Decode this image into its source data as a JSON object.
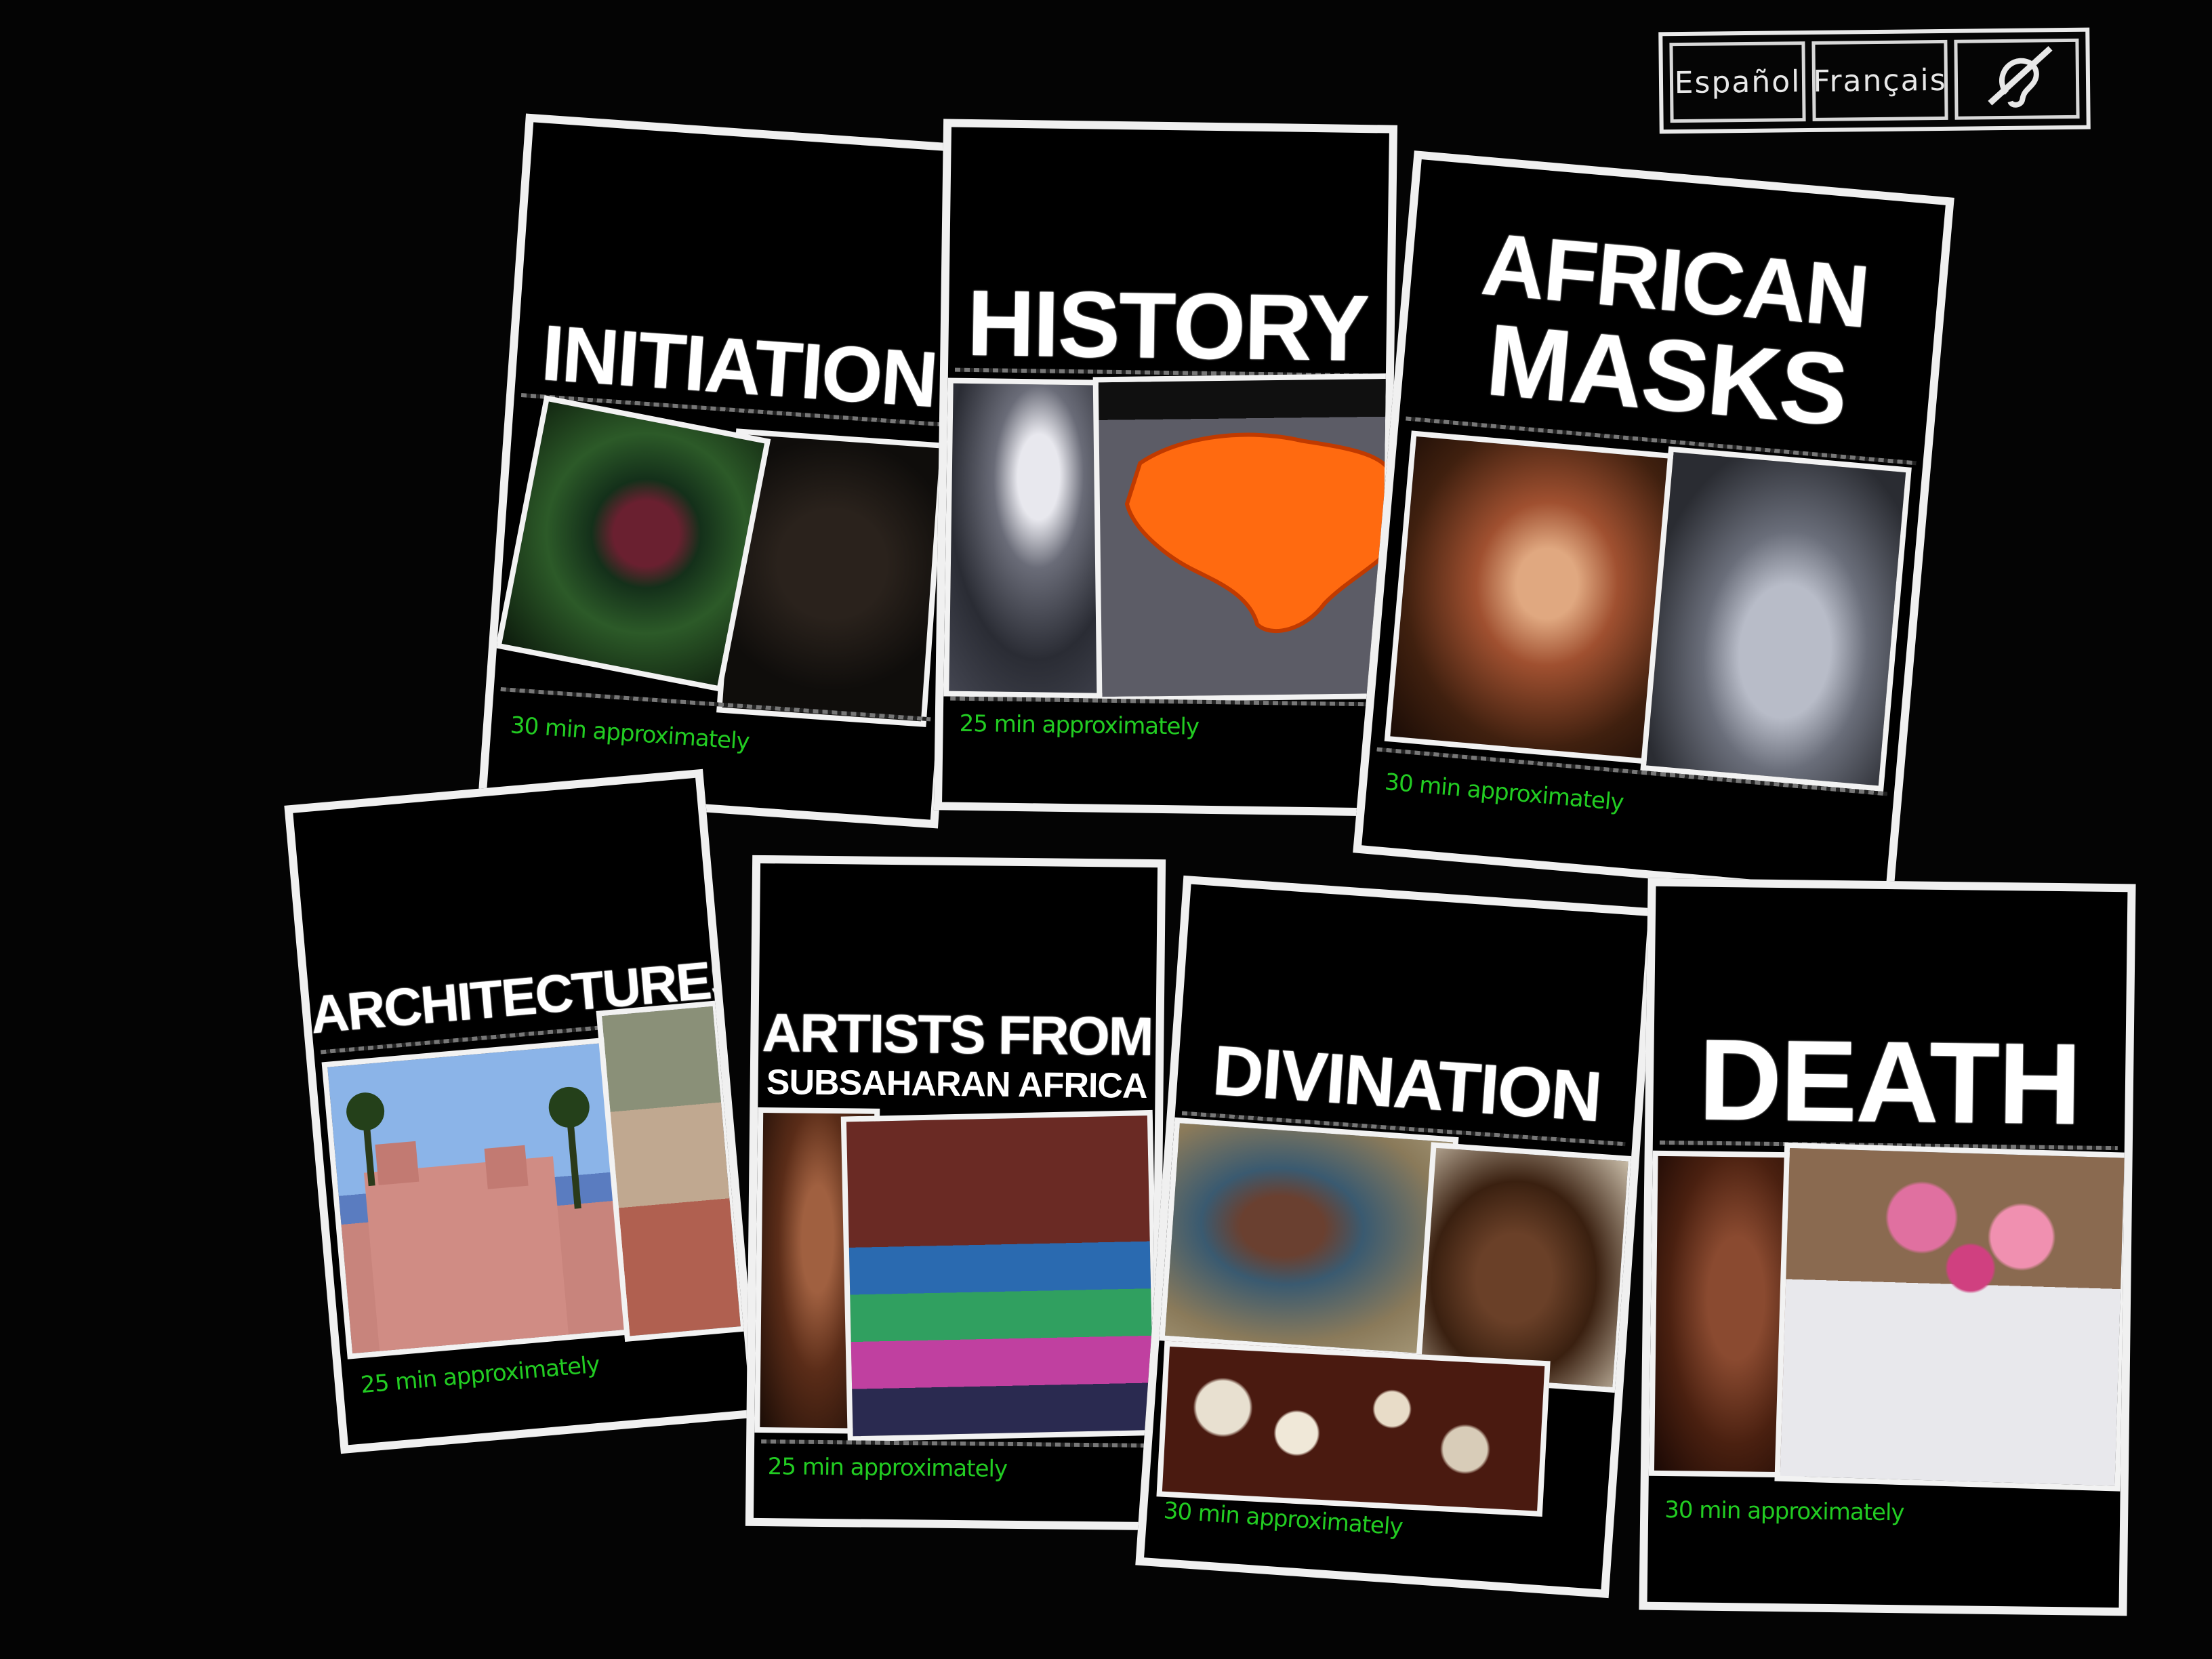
{
  "language_bar": {
    "espanol": "Español",
    "francais": "Français",
    "accessibility_icon": "hearing-impaired-icon"
  },
  "cards": [
    {
      "title": "INITIATION",
      "duration": "30 min approximately"
    },
    {
      "title": "HISTORY",
      "duration": "25 min approximately"
    },
    {
      "title_line1": "AFRICAN",
      "title_line2": "MASKS",
      "duration": "30 min approximately"
    },
    {
      "title": "ARCHITECTURES",
      "duration": "25 min approximately"
    },
    {
      "title_line1": "ARTISTS FROM",
      "title_line2": "SUBSAHARAN AFRICA",
      "duration": "25 min approximately"
    },
    {
      "title": "DIVINATION",
      "duration": "30 min approximately"
    },
    {
      "title": "DEATH",
      "duration": "30 min approximately"
    }
  ],
  "colors": {
    "background": "#040404",
    "card_border": "#f0f0f0",
    "duration_text": "#22cc22"
  }
}
